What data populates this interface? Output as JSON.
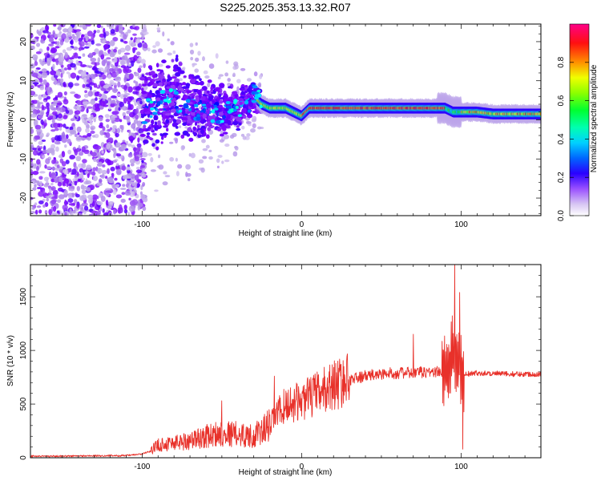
{
  "title": "S225.2025.353.13.32.R07",
  "chart_data": [
    {
      "type": "heatmap",
      "xlabel": "Height of straight line (km)",
      "ylabel": "Frequency (Hz)",
      "xlim": [
        -170,
        150
      ],
      "ylim": [
        -24.5,
        24.5
      ],
      "xticks": [
        -100,
        0,
        100
      ],
      "yticks": [
        -20,
        -10,
        0,
        10,
        20
      ],
      "grid": false,
      "colorbar": {
        "label": "Normalized spectral amplitude",
        "range": [
          0,
          1
        ],
        "ticks": [
          "0.0",
          "0.2",
          "0.4",
          "0.6",
          "0.8"
        ],
        "colormap": [
          "#ffffff",
          "#b89ee8",
          "#7b00ff",
          "#0000ff",
          "#00a0ff",
          "#00ffff",
          "#00ff80",
          "#00ff00",
          "#c0ff00",
          "#ffff00",
          "#ff8000",
          "#ff0000",
          "#ff0090"
        ]
      },
      "ridge": {
        "x": [
          -100,
          -90,
          -80,
          -70,
          -60,
          -50,
          -40,
          -30,
          -25,
          -20,
          -10,
          -5,
          0,
          5,
          10,
          20,
          40,
          60,
          80,
          90,
          95,
          100,
          110,
          120,
          130,
          140,
          150
        ],
        "freq": [
          2,
          4,
          6,
          3,
          3,
          2,
          3,
          6,
          4,
          3,
          3,
          2,
          1,
          3,
          3,
          3,
          3,
          3,
          3,
          3,
          2,
          2,
          2,
          1.5,
          1.5,
          1.5,
          1.5
        ]
      }
    },
    {
      "type": "line",
      "xlabel": "Height of straight line (km)",
      "ylabel": "SNR (10 * v/v)",
      "xlim": [
        -170,
        150
      ],
      "ylim": [
        0,
        1800
      ],
      "xticks": [
        -100,
        0,
        100
      ],
      "yticks": [
        0,
        500,
        1000,
        1500
      ],
      "color": "#e8312a",
      "series": [
        {
          "x": [
            -170,
            -150,
            -130,
            -110,
            -100,
            -95,
            -90,
            -80,
            -70,
            -60,
            -50,
            -40,
            -30,
            -20,
            -15,
            -10,
            0,
            10,
            20,
            30,
            40,
            50,
            60,
            70,
            80,
            88,
            92,
            96,
            100,
            105,
            110,
            120,
            130,
            140,
            150
          ],
          "y": [
            15,
            15,
            18,
            20,
            35,
            60,
            120,
            140,
            160,
            200,
            230,
            220,
            200,
            300,
            420,
            490,
            530,
            600,
            680,
            730,
            760,
            780,
            790,
            790,
            800,
            800,
            820,
            1000,
            800,
            780,
            790,
            785,
            780,
            780,
            780
          ]
        }
      ],
      "annotations": [
        {
          "x": -50,
          "y": 530
        },
        {
          "x": -17,
          "y": 760
        },
        {
          "x": 70,
          "y": 1150
        },
        {
          "x": 96,
          "y": 1800
        },
        {
          "x": 99,
          "y": 1540
        },
        {
          "x": 101,
          "y": 80
        }
      ]
    }
  ]
}
